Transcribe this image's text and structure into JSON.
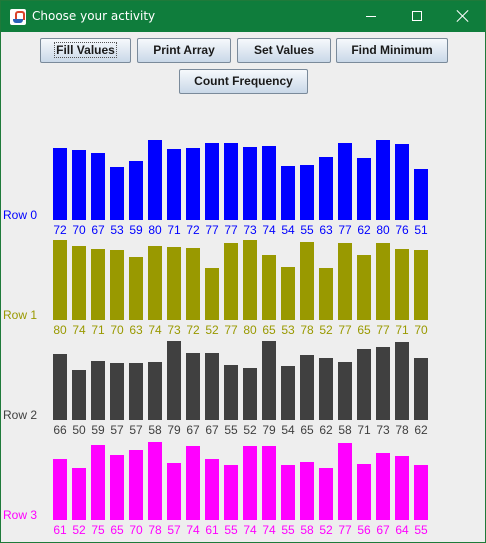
{
  "window": {
    "title": "Choose your activity"
  },
  "buttons": {
    "fill_values": "Fill Values",
    "print_array": "Print Array",
    "set_values": "Set Values",
    "find_minimum": "Find Minimum",
    "count_frequency": "Count Frequency"
  },
  "chart_data": {
    "type": "bar",
    "ylim": [
      0,
      100
    ],
    "rows": [
      {
        "label": "Row 0",
        "color": "#0000ff",
        "values": [
          72,
          70,
          67,
          53,
          59,
          80,
          71,
          72,
          77,
          77,
          73,
          74,
          54,
          55,
          63,
          77,
          62,
          80,
          76,
          51
        ]
      },
      {
        "label": "Row 1",
        "color": "#999900",
        "values": [
          80,
          74,
          71,
          70,
          63,
          74,
          73,
          72,
          52,
          77,
          80,
          65,
          53,
          78,
          52,
          77,
          65,
          77,
          71,
          70
        ]
      },
      {
        "label": "Row 2",
        "color": "#404040",
        "values": [
          66,
          50,
          59,
          57,
          57,
          58,
          79,
          67,
          67,
          55,
          52,
          79,
          54,
          65,
          62,
          58,
          71,
          73,
          78,
          62
        ]
      },
      {
        "label": "Row 3",
        "color": "#ff00ff",
        "values": [
          61,
          52,
          75,
          65,
          70,
          78,
          57,
          74,
          61,
          55,
          74,
          74,
          55,
          58,
          52,
          77,
          56,
          67,
          64,
          55
        ]
      }
    ]
  }
}
